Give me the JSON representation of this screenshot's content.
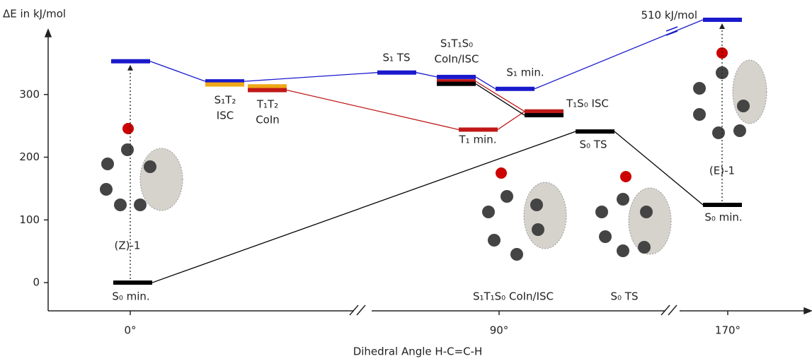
{
  "chart_data": {
    "type": "energy-level",
    "y_label": "ΔE in kJ/mol",
    "x_label": "Dihedral Angle H-C=C-H",
    "categories": [
      "0°",
      "90°",
      "170°"
    ],
    "ylim": [
      -45,
      400
    ],
    "yticks": [
      0,
      100,
      200,
      300
    ],
    "levels": [
      {
        "label": [
          "S₀ min."
        ],
        "values": [
          0
        ],
        "colors": [
          "#000000"
        ]
      },
      {
        "values": [
          353
        ],
        "colors": [
          "#1a1acc"
        ]
      },
      {
        "label": [
          "S₁T₂",
          "ISC"
        ],
        "values": [
          321,
          316
        ],
        "colors": [
          "#1a1acc",
          "#f0a818"
        ]
      },
      {
        "label": [
          "T₁T₂",
          "CoIn"
        ],
        "values": [
          313,
          307
        ],
        "colors": [
          "#f0a818",
          "#c01818"
        ]
      },
      {
        "label": [
          "S₁ TS"
        ],
        "values": [
          335
        ],
        "colors": [
          "#1a1acc"
        ]
      },
      {
        "label": [
          "S₁T₁S₀",
          "CoIn/ISC"
        ],
        "values": [
          328,
          321,
          317
        ],
        "colors": [
          "#1a1acc",
          "#c01818",
          "#000000"
        ]
      },
      {
        "label": [
          "S₁ min."
        ],
        "values": [
          309
        ],
        "colors": [
          "#1a1acc"
        ]
      },
      {
        "label": [
          "T₁ min."
        ],
        "values": [
          244
        ],
        "colors": [
          "#c01818"
        ]
      },
      {
        "label": [
          "T₁S₀ ISC"
        ],
        "values": [
          273,
          267
        ],
        "colors": [
          "#c01818",
          "#000000"
        ]
      },
      {
        "label": [
          "S₀ TS"
        ],
        "values": [
          241
        ],
        "colors": [
          "#000000"
        ]
      },
      {
        "label": [
          "510 kJ/mol"
        ],
        "values": [
          510
        ],
        "colors": [
          "#1a1acc"
        ]
      },
      {
        "label": [
          "S₀ min."
        ],
        "values": [
          124
        ],
        "colors": [
          "#000000"
        ]
      }
    ],
    "annotations": [
      "(Z)-1",
      "(E)-1",
      "S₁T₁S₀ CoIn/ISC",
      "S₀ TS"
    ]
  }
}
